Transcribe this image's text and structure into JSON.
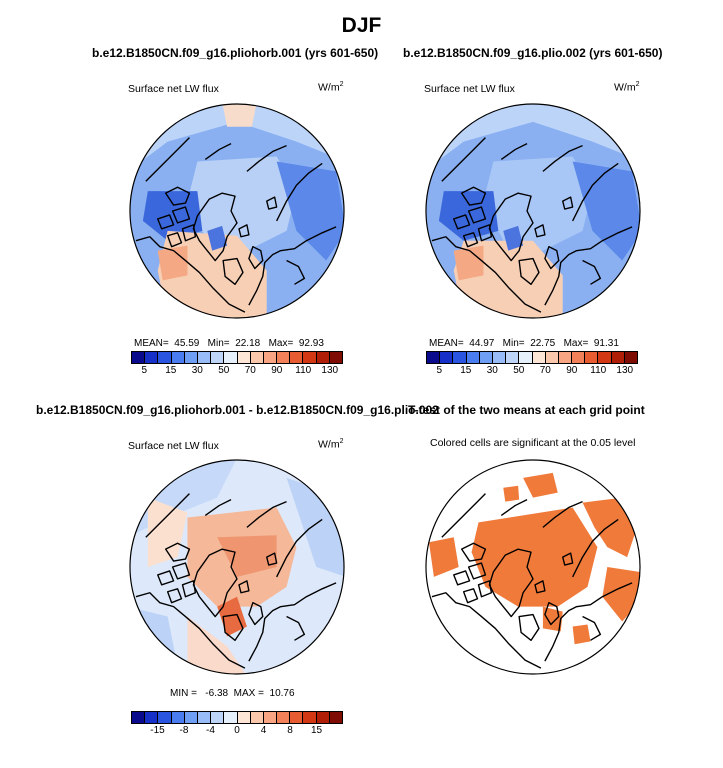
{
  "figure": {
    "title": "DJF"
  },
  "panels": [
    {
      "id": "p1",
      "title": "b.e12.B1850CN.f09_g16.pliohorb.001 (yrs 601-650)",
      "variable": "Surface net LW flux",
      "units": "W/m",
      "units_exp": "2",
      "stats": {
        "mean_label": "MEAN=",
        "mean": "45.59",
        "min_label": "Min=",
        "min": "22.18",
        "max_label": "Max=",
        "max": "92.93"
      }
    },
    {
      "id": "p2",
      "title": "b.e12.B1850CN.f09_g16.plio.002 (yrs 601-650)",
      "variable": "Surface net LW flux",
      "units": "W/m",
      "units_exp": "2",
      "stats": {
        "mean_label": "MEAN=",
        "mean": "44.97",
        "min_label": "Min=",
        "min": "22.75",
        "max_label": "Max=",
        "max": "91.31"
      }
    },
    {
      "id": "p3",
      "title": "b.e12.B1850CN.f09_g16.pliohorb.001 - b.e12.B1850CN.f09_g16.plio.002",
      "variable": "Surface net LW flux",
      "units": "W/m",
      "units_exp": "2",
      "stats": {
        "min_label": "MIN =",
        "min": "-6.38",
        "max_label": "MAX =",
        "max": "10.76"
      }
    },
    {
      "id": "p4",
      "title": "T-test of the two means at each grid point",
      "subtitle": "Colored cells are significant at the 0.05 level"
    }
  ],
  "colorbar_abs": {
    "colors": [
      "#0a0a8c",
      "#1630c8",
      "#2a55e0",
      "#4a7ef0",
      "#6f9ef5",
      "#98bcf7",
      "#bed5f8",
      "#e6f0fb",
      "#fde6d6",
      "#fbc8ac",
      "#f7a582",
      "#f2815a",
      "#e85c32",
      "#d23814",
      "#b01e08",
      "#7e0c02"
    ],
    "ticks": [
      "5",
      "15",
      "30",
      "50",
      "70",
      "90",
      "110",
      "130"
    ]
  },
  "colorbar_diff": {
    "colors": [
      "#0a0a8c",
      "#1630c8",
      "#2a55e0",
      "#4a7ef0",
      "#6f9ef5",
      "#98bcf7",
      "#bed5f8",
      "#e6f0fb",
      "#fde6d6",
      "#fbc8ac",
      "#f7a582",
      "#f2815a",
      "#e85c32",
      "#d23814",
      "#b01e08",
      "#7e0c02"
    ],
    "ticks": [
      "-15",
      "-8",
      "-4",
      "0",
      "4",
      "8",
      "15"
    ]
  },
  "significance_color": "#f07a3a"
}
